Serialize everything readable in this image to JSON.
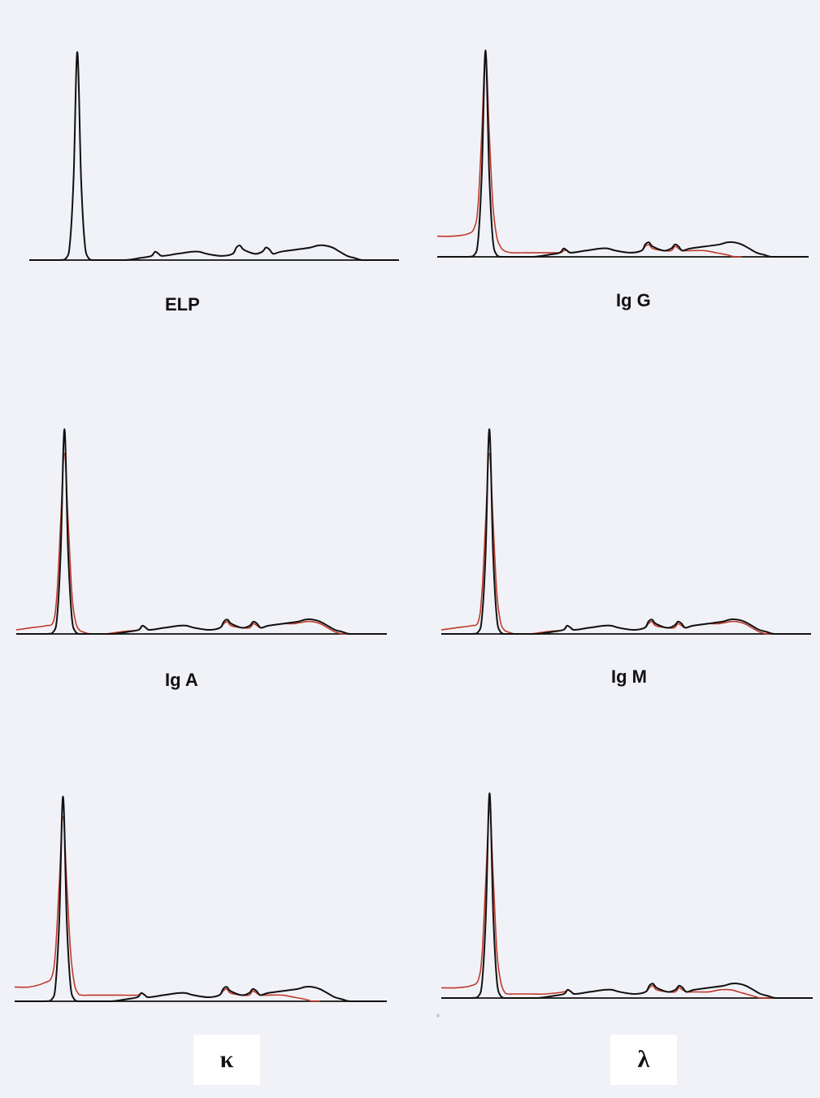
{
  "colors": {
    "sample": "#111111",
    "immunofixation": "#c0392b",
    "axis": "#111111"
  },
  "chart_data": [
    {
      "type": "line",
      "panel": "ELP",
      "label": "ELP",
      "xlim": [
        0,
        100
      ],
      "ylim": [
        0,
        100
      ],
      "series": [
        {
          "color": "#111111",
          "x": [
            0,
            8,
            10,
            11,
            12,
            13,
            14,
            15,
            16,
            17,
            18,
            20,
            22,
            26,
            30,
            33,
            34,
            35,
            36,
            40,
            44,
            46,
            48,
            52,
            55,
            56,
            57,
            58,
            61,
            63,
            64,
            65,
            66,
            68,
            72,
            76,
            78,
            80,
            82,
            84,
            86,
            88,
            90,
            94,
            100
          ],
          "y": [
            0,
            0,
            1,
            8,
            40,
            100,
            40,
            8,
            1,
            0,
            0,
            0,
            0,
            0,
            1,
            2,
            4,
            3,
            2,
            3,
            4,
            4,
            3,
            2,
            3,
            6,
            7,
            5,
            3,
            4,
            6,
            5,
            3,
            4,
            5,
            6,
            7,
            7,
            6,
            4,
            2,
            1,
            0,
            0,
            0
          ]
        }
      ]
    },
    {
      "type": "line",
      "panel": "IgG",
      "label": "Ig G",
      "xlim": [
        0,
        100
      ],
      "ylim": [
        0,
        100
      ],
      "series": [
        {
          "color": "#111111",
          "x": [
            0,
            8,
            10,
            11,
            12,
            13,
            14,
            15,
            16,
            17,
            18,
            20,
            22,
            26,
            30,
            33,
            34,
            35,
            36,
            40,
            44,
            46,
            48,
            52,
            55,
            56,
            57,
            58,
            61,
            63,
            64,
            65,
            66,
            68,
            72,
            76,
            78,
            80,
            82,
            84,
            86,
            88,
            90,
            94,
            100
          ],
          "y": [
            0,
            0,
            1,
            8,
            40,
            100,
            40,
            8,
            1,
            0,
            0,
            0,
            0,
            0,
            1,
            2,
            4,
            3,
            2,
            3,
            4,
            4,
            3,
            2,
            3,
            6,
            7,
            5,
            3,
            4,
            6,
            5,
            3,
            4,
            5,
            6,
            7,
            7,
            6,
            4,
            2,
            1,
            0,
            0,
            0
          ]
        },
        {
          "color": "#c0392b",
          "x": [
            0,
            4,
            8,
            10,
            11,
            12,
            13,
            14,
            15,
            16,
            17,
            18,
            20,
            24,
            28,
            33,
            34,
            35,
            36,
            40,
            44,
            46,
            48,
            52,
            55,
            56,
            57,
            58,
            61,
            63,
            64,
            65,
            66,
            68,
            72,
            75,
            78,
            80,
            82
          ],
          "y": [
            10,
            10,
            11,
            14,
            25,
            60,
            99,
            60,
            25,
            10,
            5,
            3,
            2,
            2,
            2,
            2,
            3,
            3,
            2,
            3,
            4,
            4,
            3,
            2,
            3,
            5,
            6,
            4,
            3,
            3,
            5,
            4,
            3,
            3,
            3,
            2,
            1,
            0,
            0
          ]
        }
      ]
    },
    {
      "type": "line",
      "panel": "IgA",
      "label": "Ig A",
      "xlim": [
        0,
        100
      ],
      "ylim": [
        0,
        100
      ],
      "series": [
        {
          "color": "#111111",
          "x": [
            0,
            8,
            10,
            11,
            12,
            13,
            14,
            15,
            16,
            17,
            18,
            20,
            22,
            26,
            30,
            33,
            34,
            35,
            36,
            40,
            44,
            46,
            48,
            52,
            55,
            56,
            57,
            58,
            61,
            63,
            64,
            65,
            66,
            68,
            72,
            76,
            78,
            80,
            82,
            84,
            86,
            88,
            90,
            94,
            100
          ],
          "y": [
            0,
            0,
            1,
            8,
            40,
            100,
            40,
            8,
            1,
            0,
            0,
            0,
            0,
            0,
            1,
            2,
            4,
            3,
            2,
            3,
            4,
            4,
            3,
            2,
            3,
            6,
            7,
            5,
            3,
            4,
            6,
            5,
            3,
            4,
            5,
            6,
            7,
            7,
            6,
            4,
            2,
            1,
            0,
            0,
            0
          ]
        },
        {
          "color": "#c0392b",
          "x": [
            0,
            4,
            8,
            10,
            11,
            12,
            13,
            14,
            15,
            16,
            17,
            18,
            20,
            24,
            28,
            33,
            34,
            35,
            36,
            40,
            44,
            46,
            48,
            52,
            55,
            56,
            57,
            58,
            61,
            63,
            64,
            65,
            66,
            68,
            72,
            75,
            78,
            80,
            82,
            84,
            86,
            88,
            90
          ],
          "y": [
            2,
            3,
            4,
            6,
            20,
            55,
            88,
            55,
            20,
            6,
            2,
            1,
            0,
            0,
            1,
            2,
            4,
            3,
            2,
            3,
            4,
            4,
            3,
            2,
            3,
            5,
            6,
            4,
            3,
            3,
            5,
            4,
            3,
            4,
            5,
            5,
            6,
            6,
            5,
            3,
            1,
            0,
            0
          ]
        }
      ]
    },
    {
      "type": "line",
      "panel": "IgM",
      "label": "Ig M",
      "xlim": [
        0,
        100
      ],
      "ylim": [
        0,
        100
      ],
      "series": [
        {
          "color": "#111111",
          "x": [
            0,
            8,
            10,
            11,
            12,
            13,
            14,
            15,
            16,
            17,
            18,
            20,
            22,
            26,
            30,
            33,
            34,
            35,
            36,
            40,
            44,
            46,
            48,
            52,
            55,
            56,
            57,
            58,
            61,
            63,
            64,
            65,
            66,
            68,
            72,
            76,
            78,
            80,
            82,
            84,
            86,
            88,
            90,
            94,
            100
          ],
          "y": [
            0,
            0,
            1,
            8,
            40,
            100,
            40,
            8,
            1,
            0,
            0,
            0,
            0,
            0,
            1,
            2,
            4,
            3,
            2,
            3,
            4,
            4,
            3,
            2,
            3,
            6,
            7,
            5,
            3,
            4,
            6,
            5,
            3,
            4,
            5,
            6,
            7,
            7,
            6,
            4,
            2,
            1,
            0,
            0,
            0
          ]
        },
        {
          "color": "#c0392b",
          "x": [
            0,
            4,
            8,
            10,
            11,
            12,
            13,
            14,
            15,
            16,
            17,
            18,
            20,
            24,
            28,
            33,
            34,
            35,
            36,
            40,
            44,
            46,
            48,
            52,
            55,
            56,
            57,
            58,
            61,
            63,
            64,
            65,
            66,
            68,
            72,
            75,
            78,
            80,
            82,
            84,
            86,
            88,
            90
          ],
          "y": [
            2,
            3,
            4,
            6,
            20,
            55,
            88,
            55,
            20,
            6,
            2,
            1,
            0,
            0,
            1,
            2,
            4,
            3,
            2,
            3,
            4,
            4,
            3,
            2,
            3,
            5,
            6,
            4,
            3,
            3,
            5,
            4,
            3,
            4,
            5,
            5,
            6,
            6,
            5,
            3,
            1,
            0,
            0
          ]
        }
      ]
    },
    {
      "type": "line",
      "panel": "kappa",
      "label": "κ",
      "xlim": [
        0,
        100
      ],
      "ylim": [
        0,
        100
      ],
      "series": [
        {
          "color": "#111111",
          "x": [
            0,
            8,
            10,
            11,
            12,
            13,
            14,
            15,
            16,
            17,
            18,
            20,
            22,
            26,
            30,
            33,
            34,
            35,
            36,
            40,
            44,
            46,
            48,
            52,
            55,
            56,
            57,
            58,
            61,
            63,
            64,
            65,
            66,
            68,
            72,
            76,
            78,
            80,
            82,
            84,
            86,
            88,
            90,
            94,
            100
          ],
          "y": [
            0,
            0,
            1,
            8,
            40,
            100,
            40,
            8,
            1,
            0,
            0,
            0,
            0,
            0,
            1,
            2,
            4,
            3,
            2,
            3,
            4,
            4,
            3,
            2,
            3,
            6,
            7,
            5,
            3,
            4,
            6,
            5,
            3,
            4,
            5,
            6,
            7,
            7,
            6,
            4,
            2,
            1,
            0,
            0,
            0
          ]
        },
        {
          "color": "#c0392b",
          "x": [
            0,
            4,
            8,
            10,
            11,
            12,
            13,
            14,
            15,
            16,
            17,
            18,
            20,
            24,
            28,
            33,
            34,
            35,
            36,
            40,
            44,
            46,
            48,
            52,
            55,
            56,
            57,
            58,
            61,
            63,
            64,
            65,
            66,
            68,
            72,
            75,
            78,
            80,
            82
          ],
          "y": [
            7,
            7,
            9,
            12,
            25,
            58,
            90,
            58,
            25,
            9,
            4,
            3,
            3,
            3,
            3,
            3,
            4,
            3,
            2,
            3,
            4,
            4,
            3,
            2,
            3,
            5,
            6,
            4,
            3,
            3,
            5,
            4,
            3,
            3,
            3,
            2,
            1,
            0,
            0
          ]
        }
      ]
    },
    {
      "type": "line",
      "panel": "lambda",
      "label": "λ",
      "xlim": [
        0,
        100
      ],
      "ylim": [
        0,
        100
      ],
      "series": [
        {
          "color": "#111111",
          "x": [
            0,
            8,
            10,
            11,
            12,
            13,
            14,
            15,
            16,
            17,
            18,
            20,
            22,
            26,
            30,
            33,
            34,
            35,
            36,
            40,
            44,
            46,
            48,
            52,
            55,
            56,
            57,
            58,
            61,
            63,
            64,
            65,
            66,
            68,
            72,
            76,
            78,
            80,
            82,
            84,
            86,
            88,
            90,
            94,
            100
          ],
          "y": [
            0,
            0,
            1,
            8,
            40,
            100,
            40,
            8,
            1,
            0,
            0,
            0,
            0,
            0,
            1,
            2,
            4,
            3,
            2,
            3,
            4,
            4,
            3,
            2,
            3,
            6,
            7,
            5,
            3,
            4,
            6,
            5,
            3,
            4,
            5,
            6,
            7,
            7,
            6,
            4,
            2,
            1,
            0,
            0,
            0
          ]
        },
        {
          "color": "#c0392b",
          "x": [
            0,
            4,
            8,
            10,
            11,
            12,
            13,
            14,
            15,
            16,
            17,
            18,
            20,
            24,
            28,
            33,
            34,
            35,
            36,
            40,
            44,
            46,
            48,
            52,
            55,
            56,
            57,
            58,
            61,
            63,
            64,
            65,
            66,
            68,
            72,
            75,
            78,
            80,
            82,
            84,
            86,
            88,
            90,
            94,
            100
          ],
          "y": [
            5,
            5,
            6,
            9,
            22,
            58,
            92,
            58,
            22,
            8,
            3,
            2,
            2,
            2,
            2,
            3,
            4,
            3,
            2,
            3,
            4,
            4,
            3,
            2,
            3,
            5,
            6,
            4,
            3,
            3,
            5,
            4,
            3,
            3,
            3,
            4,
            4,
            3,
            2,
            1,
            0,
            0,
            0,
            0,
            0
          ]
        }
      ]
    }
  ]
}
